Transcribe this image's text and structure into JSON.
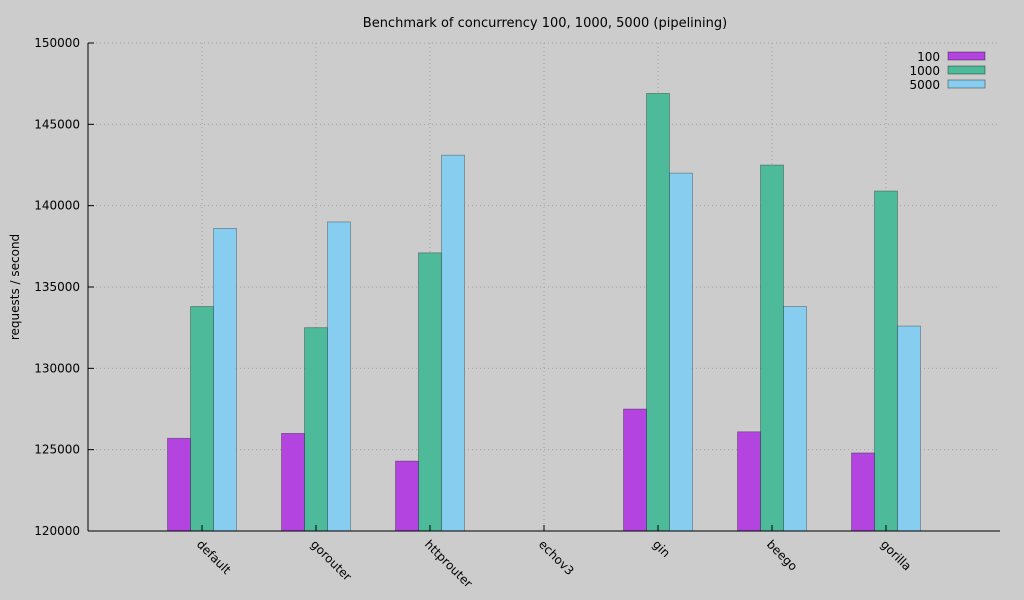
{
  "chart_data": {
    "type": "bar",
    "title": "Benchmark of concurrency 100, 1000, 5000 (pipelining)",
    "xlabel": "",
    "ylabel": "requests / second",
    "ylim": [
      120000,
      150000
    ],
    "yticks": [
      120000,
      125000,
      130000,
      135000,
      140000,
      145000,
      150000
    ],
    "grid": true,
    "legend_position": "top-right",
    "categories": [
      "default",
      "gorouter",
      "httprouter",
      "echov3",
      "gin",
      "beego",
      "gorilla"
    ],
    "series": [
      {
        "name": "100",
        "color": "#b344e0",
        "values": [
          125700,
          126000,
          124300,
          null,
          127500,
          126100,
          124800
        ]
      },
      {
        "name": "1000",
        "color": "#4dbb9a",
        "values": [
          133800,
          132500,
          137100,
          null,
          146900,
          142500,
          140900
        ]
      },
      {
        "name": "5000",
        "color": "#87cdf0",
        "values": [
          138600,
          139000,
          143100,
          null,
          142000,
          133800,
          132600
        ]
      }
    ]
  }
}
